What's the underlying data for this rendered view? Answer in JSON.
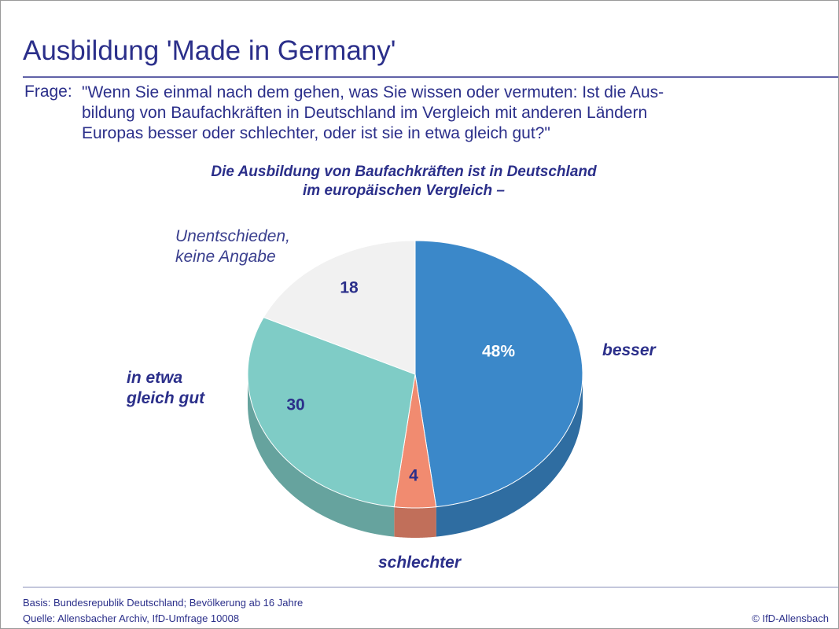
{
  "header": {
    "title": "Ausbildung 'Made in Germany'",
    "question_label": "Frage:",
    "question": "\"Wenn Sie einmal nach dem gehen, was Sie wissen oder vermuten: Ist die Aus-\nbildung von Baufachkräften in Deutschland im Vergleich mit anderen Ländern\nEuropas besser oder schlechter, oder ist sie in etwa gleich gut?\""
  },
  "chart_data": {
    "type": "pie",
    "subtitle": "Die Ausbildung von Baufachkräften ist in Deutschland\nim europäischen Vergleich –",
    "categories": [
      "besser",
      "schlechter",
      "in etwa\ngleich gut",
      "Unentschieden,\nkeine Angabe"
    ],
    "values": [
      48,
      4,
      30,
      18
    ],
    "value_labels": [
      "48%",
      "4",
      "30",
      "18"
    ],
    "colors": [
      "#3b88c9",
      "#f18b70",
      "#7fccc6",
      "#f1f1f1"
    ]
  },
  "footer": {
    "basis": "Basis: Bundesrepublik Deutschland; Bevölkerung ab 16 Jahre",
    "source": "Quelle: Allensbacher Archiv, IfD-Umfrage 10008",
    "copyright": "© IfD-Allensbach"
  }
}
